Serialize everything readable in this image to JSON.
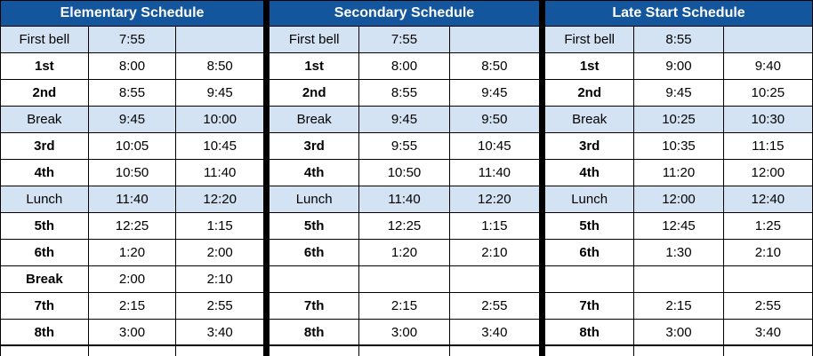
{
  "colors": {
    "header_bg": "#14569D",
    "header_text": "#FFFFFF",
    "highlight_row_bg": "#D4E3F3",
    "grid_border": "#000000",
    "table_separator": "#000000",
    "body_text": "#000000"
  },
  "tables": [
    {
      "title": "Elementary Schedule",
      "rows": [
        {
          "cells": [
            "First bell",
            "7:55",
            ""
          ],
          "highlight": true
        },
        {
          "cells": [
            "1st",
            "8:00",
            "8:50"
          ],
          "highlight": false
        },
        {
          "cells": [
            "2nd",
            "8:55",
            "9:45"
          ],
          "highlight": false
        },
        {
          "cells": [
            "Break",
            "9:45",
            "10:00"
          ],
          "highlight": true
        },
        {
          "cells": [
            "3rd",
            "10:05",
            "10:45"
          ],
          "highlight": false
        },
        {
          "cells": [
            "4th",
            "10:50",
            "11:40"
          ],
          "highlight": false
        },
        {
          "cells": [
            "Lunch",
            "11:40",
            "12:20"
          ],
          "highlight": true
        },
        {
          "cells": [
            "5th",
            "12:25",
            "1:15"
          ],
          "highlight": false
        },
        {
          "cells": [
            "6th",
            "1:20",
            "2:00"
          ],
          "highlight": false
        },
        {
          "cells": [
            "Break",
            "2:00",
            "2:10"
          ],
          "highlight": false
        },
        {
          "cells": [
            "7th",
            "2:15",
            "2:55"
          ],
          "highlight": false
        },
        {
          "cells": [
            "8th",
            "3:00",
            "3:40"
          ],
          "highlight": false
        }
      ]
    },
    {
      "title": "Secondary Schedule",
      "rows": [
        {
          "cells": [
            "First bell",
            "7:55",
            ""
          ],
          "highlight": true
        },
        {
          "cells": [
            "1st",
            "8:00",
            "8:50"
          ],
          "highlight": false
        },
        {
          "cells": [
            "2nd",
            "8:55",
            "9:45"
          ],
          "highlight": false
        },
        {
          "cells": [
            "Break",
            "9:45",
            "9:50"
          ],
          "highlight": true
        },
        {
          "cells": [
            "3rd",
            "9:55",
            "10:45"
          ],
          "highlight": false
        },
        {
          "cells": [
            "4th",
            "10:50",
            "11:40"
          ],
          "highlight": false
        },
        {
          "cells": [
            "Lunch",
            "11:40",
            "12:20"
          ],
          "highlight": true
        },
        {
          "cells": [
            "5th",
            "12:25",
            "1:15"
          ],
          "highlight": false
        },
        {
          "cells": [
            "6th",
            "1:20",
            "2:10"
          ],
          "highlight": false
        },
        {
          "cells": [
            "",
            "",
            ""
          ],
          "highlight": false
        },
        {
          "cells": [
            "7th",
            "2:15",
            "2:55"
          ],
          "highlight": false
        },
        {
          "cells": [
            "8th",
            "3:00",
            "3:40"
          ],
          "highlight": false
        }
      ]
    },
    {
      "title": "Late Start Schedule",
      "rows": [
        {
          "cells": [
            "First bell",
            "8:55",
            ""
          ],
          "highlight": true
        },
        {
          "cells": [
            "1st",
            "9:00",
            "9:40"
          ],
          "highlight": false
        },
        {
          "cells": [
            "2nd",
            "9:45",
            "10:25"
          ],
          "highlight": false
        },
        {
          "cells": [
            "Break",
            "10:25",
            "10:30"
          ],
          "highlight": true
        },
        {
          "cells": [
            "3rd",
            "10:35",
            "11:15"
          ],
          "highlight": false
        },
        {
          "cells": [
            "4th",
            "11:20",
            "12:00"
          ],
          "highlight": false
        },
        {
          "cells": [
            "Lunch",
            "12:00",
            "12:40"
          ],
          "highlight": true
        },
        {
          "cells": [
            "5th",
            "12:45",
            "1:25"
          ],
          "highlight": false
        },
        {
          "cells": [
            "6th",
            "1:30",
            "2:10"
          ],
          "highlight": false
        },
        {
          "cells": [
            "",
            "",
            ""
          ],
          "highlight": false
        },
        {
          "cells": [
            "7th",
            "2:15",
            "2:55"
          ],
          "highlight": false
        },
        {
          "cells": [
            "8th",
            "3:00",
            "3:40"
          ],
          "highlight": false
        }
      ]
    }
  ]
}
